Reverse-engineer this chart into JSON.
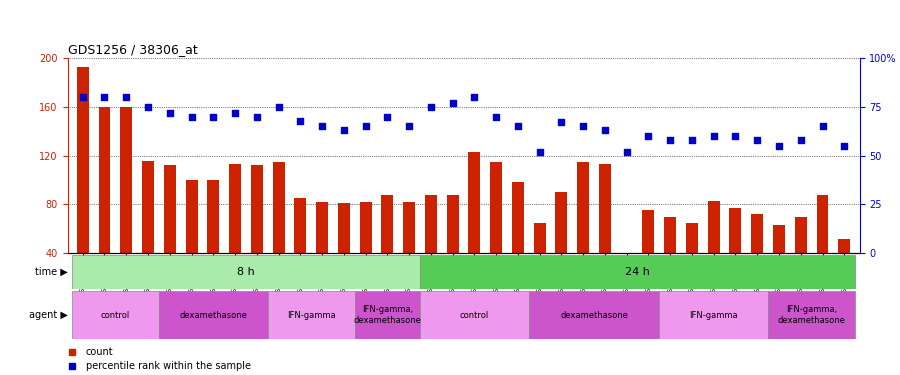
{
  "title": "GDS1256 / 38306_at",
  "samples": [
    "GSM31694",
    "GSM31695",
    "GSM31696",
    "GSM31697",
    "GSM31698",
    "GSM31699",
    "GSM31700",
    "GSM31701",
    "GSM31702",
    "GSM31703",
    "GSM31704",
    "GSM31705",
    "GSM31706",
    "GSM31707",
    "GSM31708",
    "GSM31709",
    "GSM31674",
    "GSM31678",
    "GSM31682",
    "GSM31686",
    "GSM31690",
    "GSM31675",
    "GSM31679",
    "GSM31683",
    "GSM31687",
    "GSM31691",
    "GSM31676",
    "GSM31680",
    "GSM31684",
    "GSM31688",
    "GSM31692",
    "GSM31677",
    "GSM31681",
    "GSM31685",
    "GSM31689",
    "GSM31693"
  ],
  "counts": [
    193,
    160,
    160,
    116,
    112,
    100,
    100,
    113,
    112,
    115,
    85,
    82,
    81,
    82,
    88,
    82,
    88,
    88,
    123,
    115,
    98,
    65,
    90,
    115,
    113,
    40,
    75,
    70,
    65,
    83,
    77,
    72,
    63,
    70,
    88,
    52
  ],
  "percentiles": [
    80,
    80,
    80,
    75,
    72,
    70,
    70,
    72,
    70,
    75,
    68,
    65,
    63,
    65,
    70,
    65,
    75,
    77,
    80,
    70,
    65,
    52,
    67,
    65,
    63,
    52,
    60,
    58,
    58,
    60,
    60,
    58,
    55,
    58,
    65,
    55
  ],
  "bar_color": "#cc2200",
  "dot_color": "#0000cc",
  "ylim_left": [
    40,
    200
  ],
  "ylim_right": [
    0,
    100
  ],
  "yticks_left": [
    40,
    80,
    120,
    160,
    200
  ],
  "yticks_right": [
    0,
    25,
    50,
    75,
    100
  ],
  "time_groups": [
    {
      "label": "8 h",
      "start": 0,
      "end": 16,
      "color": "#aaeaaa"
    },
    {
      "label": "24 h",
      "start": 16,
      "end": 36,
      "color": "#55cc55"
    }
  ],
  "agent_groups": [
    {
      "label": "control",
      "start": 0,
      "end": 4,
      "color": "#ee99ee"
    },
    {
      "label": "dexamethasone",
      "start": 4,
      "end": 9,
      "color": "#cc55cc"
    },
    {
      "label": "IFN-gamma",
      "start": 9,
      "end": 13,
      "color": "#ee99ee"
    },
    {
      "label": "IFN-gamma,\ndexamethasone",
      "start": 13,
      "end": 16,
      "color": "#cc55cc"
    },
    {
      "label": "control",
      "start": 16,
      "end": 21,
      "color": "#ee99ee"
    },
    {
      "label": "dexamethasone",
      "start": 21,
      "end": 27,
      "color": "#cc55cc"
    },
    {
      "label": "IFN-gamma",
      "start": 27,
      "end": 32,
      "color": "#ee99ee"
    },
    {
      "label": "IFN-gamma,\ndexamethasone",
      "start": 32,
      "end": 36,
      "color": "#cc55cc"
    }
  ],
  "legend_count_color": "#cc2200",
  "legend_dot_color": "#0000cc",
  "background_color": "#ffffff"
}
